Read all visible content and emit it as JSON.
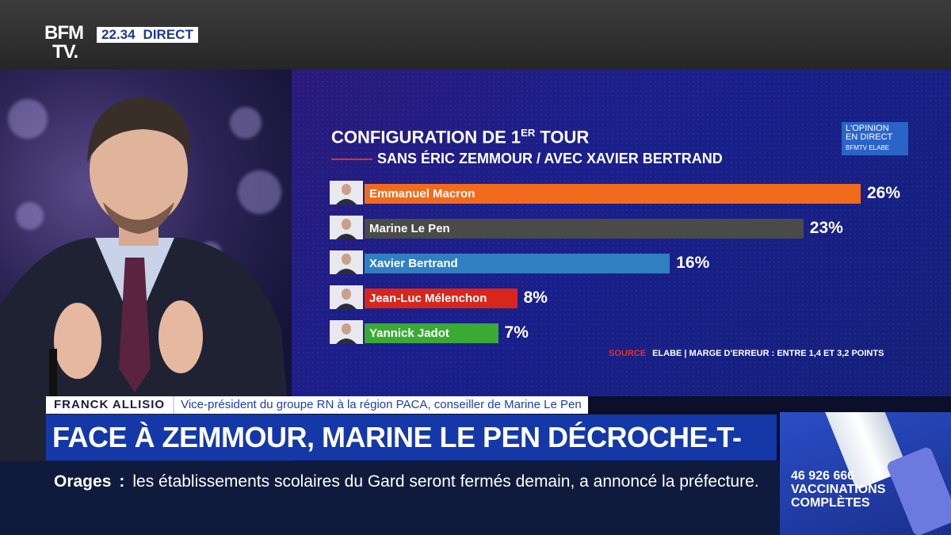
{
  "channel": {
    "logo_line1": "BFM",
    "logo_line2": "TV.",
    "time": "22.34",
    "live_label": "DIRECT"
  },
  "poll": {
    "title_main": "CONFIGURATION DE 1",
    "title_sup": "ER",
    "title_end": " TOUR",
    "subtitle": "SANS ÉRIC ZEMMOUR / AVEC XAVIER BERTRAND",
    "badge_line1": "L'OPINION",
    "badge_line2": "EN DIRECT",
    "badge_line3": "BFMTV ELABE",
    "source_label": "SOURCE",
    "source_text": "ELABE | MARGE D'ERREUR : ENTRE 1,4 ET 3,2 POINTS"
  },
  "chart_data": {
    "type": "bar",
    "title": "CONFIGURATION DE 1ER TOUR",
    "subtitle": "SANS ÉRIC ZEMMOUR / AVEC XAVIER BERTRAND",
    "categories": [
      "Emmanuel Macron",
      "Marine Le Pen",
      "Xavier Bertrand",
      "Jean-Luc Mélenchon",
      "Yannick Jadot"
    ],
    "values": [
      26,
      23,
      16,
      8,
      7
    ],
    "labels": [
      "26%",
      "23%",
      "16%",
      "8%",
      "7%"
    ],
    "colors": [
      "#f26b1d",
      "#4a4a4a",
      "#2f7fc1",
      "#d9261c",
      "#3aaa35"
    ],
    "xlim": [
      0,
      26
    ],
    "orientation": "horizontal"
  },
  "lower_third": {
    "guest_name": "FRANCK ALLISIO",
    "guest_role": "Vice-président du groupe RN à la région PACA, conseiller de Marine Le Pen",
    "headline": "FACE À ZEMMOUR, MARINE LE PEN DÉCROCHE-T-ELLE?"
  },
  "ticker": {
    "label": "Orages",
    "separator": ":",
    "text": "les établissements scolaires du Gard seront fermés demain, a annoncé la préfecture."
  },
  "vaccination": {
    "count": "46 926 666",
    "line2": "VACCINATIONS",
    "line3": "COMPLÈTES"
  }
}
